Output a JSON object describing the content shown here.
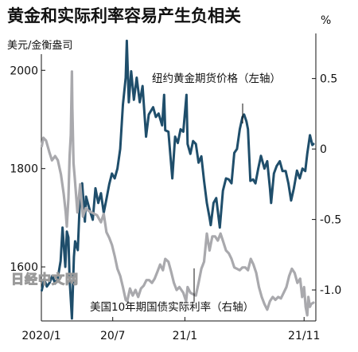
{
  "chart_data": {
    "type": "line",
    "title": "黄金和实际利率容易产生负相关",
    "y_left_unit": "美元/金衡盎司",
    "y_right_unit": "%",
    "y_left_ticks": [
      "2000",
      "1800",
      "1600"
    ],
    "y_left_lim": [
      1490,
      2075
    ],
    "y_right_ticks": [
      "0.5",
      "0",
      "-0.5",
      "-1.0"
    ],
    "y_right_lim": [
      -1.22,
      0.82
    ],
    "x_ticks": [
      "2020/1",
      "20/7",
      "21/1",
      "21/11"
    ],
    "series": [
      {
        "name": "纽约黄金期货价格（左轴）",
        "axis": "left",
        "color": "#1f4e6b",
        "points": [
          [
            "2020-01-02",
            1552
          ],
          [
            "2020-01-08",
            1575
          ],
          [
            "2020-01-15",
            1560
          ],
          [
            "2020-01-22",
            1568
          ],
          [
            "2020-01-29",
            1582
          ],
          [
            "2020-02-05",
            1566
          ],
          [
            "2020-02-12",
            1578
          ],
          [
            "2020-02-19",
            1612
          ],
          [
            "2020-02-24",
            1680
          ],
          [
            "2020-03-02",
            1600
          ],
          [
            "2020-03-06",
            1672
          ],
          [
            "2020-03-10",
            1660
          ],
          [
            "2020-03-13",
            1575
          ],
          [
            "2020-03-19",
            1495
          ],
          [
            "2020-03-24",
            1620
          ],
          [
            "2020-03-27",
            1652
          ],
          [
            "2020-04-03",
            1634
          ],
          [
            "2020-04-09",
            1752
          ],
          [
            "2020-04-14",
            1770
          ],
          [
            "2020-04-21",
            1692
          ],
          [
            "2020-04-24",
            1743
          ],
          [
            "2020-05-04",
            1714
          ],
          [
            "2020-05-11",
            1696
          ],
          [
            "2020-05-18",
            1760
          ],
          [
            "2020-05-25",
            1730
          ],
          [
            "2020-06-01",
            1750
          ],
          [
            "2020-06-08",
            1710
          ],
          [
            "2020-06-15",
            1738
          ],
          [
            "2020-06-22",
            1768
          ],
          [
            "2020-06-29",
            1790
          ],
          [
            "2020-07-06",
            1780
          ],
          [
            "2020-07-13",
            1800
          ],
          [
            "2020-07-20",
            1840
          ],
          [
            "2020-07-27",
            1930
          ],
          [
            "2020-08-03",
            1985
          ],
          [
            "2020-08-06",
            2060
          ],
          [
            "2020-08-11",
            1935
          ],
          [
            "2020-08-17",
            1998
          ],
          [
            "2020-08-24",
            1940
          ],
          [
            "2020-08-31",
            1985
          ],
          [
            "2020-09-08",
            1935
          ],
          [
            "2020-09-15",
            1968
          ],
          [
            "2020-09-24",
            1865
          ],
          [
            "2020-10-01",
            1910
          ],
          [
            "2020-10-12",
            1925
          ],
          [
            "2020-10-19",
            1905
          ],
          [
            "2020-10-26",
            1912
          ],
          [
            "2020-11-04",
            1888
          ],
          [
            "2020-11-09",
            1950
          ],
          [
            "2020-11-12",
            1878
          ],
          [
            "2020-11-20",
            1875
          ],
          [
            "2020-11-30",
            1780
          ],
          [
            "2020-12-07",
            1865
          ],
          [
            "2020-12-14",
            1852
          ],
          [
            "2020-12-21",
            1880
          ],
          [
            "2020-12-28",
            1875
          ],
          [
            "2021-01-05",
            1950
          ],
          [
            "2021-01-08",
            1850
          ],
          [
            "2021-01-15",
            1830
          ],
          [
            "2021-01-22",
            1856
          ],
          [
            "2021-01-29",
            1850
          ],
          [
            "2021-02-05",
            1812
          ],
          [
            "2021-02-12",
            1825
          ],
          [
            "2021-02-19",
            1775
          ],
          [
            "2021-02-26",
            1730
          ],
          [
            "2021-03-05",
            1700
          ],
          [
            "2021-03-08",
            1685
          ],
          [
            "2021-03-15",
            1730
          ],
          [
            "2021-03-22",
            1740
          ],
          [
            "2021-03-31",
            1680
          ],
          [
            "2021-04-08",
            1755
          ],
          [
            "2021-04-16",
            1780
          ],
          [
            "2021-04-23",
            1778
          ],
          [
            "2021-04-30",
            1770
          ],
          [
            "2021-05-07",
            1832
          ],
          [
            "2021-05-14",
            1840
          ],
          [
            "2021-05-21",
            1880
          ],
          [
            "2021-05-28",
            1905
          ],
          [
            "2021-06-01",
            1910
          ],
          [
            "2021-06-07",
            1896
          ],
          [
            "2021-06-11",
            1880
          ],
          [
            "2021-06-17",
            1775
          ],
          [
            "2021-06-24",
            1778
          ],
          [
            "2021-06-30",
            1770
          ],
          [
            "2021-07-07",
            1800
          ],
          [
            "2021-07-14",
            1826
          ],
          [
            "2021-07-23",
            1800
          ],
          [
            "2021-07-30",
            1815
          ],
          [
            "2021-08-06",
            1760
          ],
          [
            "2021-08-09",
            1730
          ],
          [
            "2021-08-16",
            1790
          ],
          [
            "2021-08-23",
            1805
          ],
          [
            "2021-08-31",
            1815
          ],
          [
            "2021-09-07",
            1795
          ],
          [
            "2021-09-15",
            1795
          ],
          [
            "2021-09-22",
            1770
          ],
          [
            "2021-09-29",
            1735
          ],
          [
            "2021-10-06",
            1760
          ],
          [
            "2021-10-14",
            1796
          ],
          [
            "2021-10-21",
            1780
          ],
          [
            "2021-10-28",
            1800
          ],
          [
            "2021-11-04",
            1795
          ],
          [
            "2021-11-09",
            1830
          ],
          [
            "2021-11-16",
            1868
          ],
          [
            "2021-11-22",
            1848
          ],
          [
            "2021-11-25",
            1850
          ]
        ]
      },
      {
        "name": "美国10年期国债实际利率（右轴）",
        "axis": "right",
        "color": "#a9a9ad",
        "points": [
          [
            "2020-01-02",
            0.02
          ],
          [
            "2020-01-06",
            0.08
          ],
          [
            "2020-01-13",
            0.06
          ],
          [
            "2020-01-21",
            -0.02
          ],
          [
            "2020-01-28",
            -0.08
          ],
          [
            "2020-02-05",
            -0.05
          ],
          [
            "2020-02-12",
            -0.08
          ],
          [
            "2020-02-20",
            -0.18
          ],
          [
            "2020-02-27",
            -0.32
          ],
          [
            "2020-03-03",
            -0.45
          ],
          [
            "2020-03-06",
            -0.55
          ],
          [
            "2020-03-10",
            -0.35
          ],
          [
            "2020-03-13",
            -0.05
          ],
          [
            "2020-03-16",
            0.1
          ],
          [
            "2020-03-19",
            0.55
          ],
          [
            "2020-03-20",
            0.3
          ],
          [
            "2020-03-23",
            -0.1
          ],
          [
            "2020-03-26",
            -0.2
          ],
          [
            "2020-04-02",
            -0.45
          ],
          [
            "2020-04-09",
            -0.25
          ],
          [
            "2020-04-16",
            -0.48
          ],
          [
            "2020-04-23",
            -0.42
          ],
          [
            "2020-05-01",
            -0.44
          ],
          [
            "2020-05-08",
            -0.45
          ],
          [
            "2020-05-15",
            -0.46
          ],
          [
            "2020-05-22",
            -0.47
          ],
          [
            "2020-06-01",
            -0.52
          ],
          [
            "2020-06-08",
            -0.46
          ],
          [
            "2020-06-15",
            -0.59
          ],
          [
            "2020-06-22",
            -0.63
          ],
          [
            "2020-06-29",
            -0.68
          ],
          [
            "2020-07-06",
            -0.76
          ],
          [
            "2020-07-13",
            -0.85
          ],
          [
            "2020-07-20",
            -0.9
          ],
          [
            "2020-07-27",
            -0.98
          ],
          [
            "2020-08-03",
            -1.07
          ],
          [
            "2020-08-07",
            -1.08
          ],
          [
            "2020-08-14",
            -0.99
          ],
          [
            "2020-08-21",
            -1.04
          ],
          [
            "2020-08-28",
            -1.0
          ],
          [
            "2020-09-04",
            -1.05
          ],
          [
            "2020-09-11",
            -0.99
          ],
          [
            "2020-09-18",
            -0.97
          ],
          [
            "2020-09-25",
            -0.93
          ],
          [
            "2020-10-02",
            -0.93
          ],
          [
            "2020-10-09",
            -0.95
          ],
          [
            "2020-10-16",
            -0.92
          ],
          [
            "2020-10-23",
            -0.87
          ],
          [
            "2020-10-30",
            -0.82
          ],
          [
            "2020-11-06",
            -0.86
          ],
          [
            "2020-11-12",
            -0.78
          ],
          [
            "2020-11-20",
            -0.8
          ],
          [
            "2020-11-27",
            -0.87
          ],
          [
            "2020-12-04",
            -0.95
          ],
          [
            "2020-12-11",
            -1.0
          ],
          [
            "2020-12-18",
            -0.98
          ],
          [
            "2020-12-28",
            -1.02
          ],
          [
            "2021-01-04",
            -1.08
          ],
          [
            "2021-01-08",
            -0.98
          ],
          [
            "2021-01-15",
            -1.02
          ],
          [
            "2021-01-22",
            -1.03
          ],
          [
            "2021-01-29",
            -1.04
          ],
          [
            "2021-02-05",
            -0.95
          ],
          [
            "2021-02-12",
            -0.85
          ],
          [
            "2021-02-19",
            -0.8
          ],
          [
            "2021-02-26",
            -0.6
          ],
          [
            "2021-03-05",
            -0.72
          ],
          [
            "2021-03-12",
            -0.62
          ],
          [
            "2021-03-19",
            -0.62
          ],
          [
            "2021-03-26",
            -0.65
          ],
          [
            "2021-04-02",
            -0.6
          ],
          [
            "2021-04-09",
            -0.66
          ],
          [
            "2021-04-16",
            -0.72
          ],
          [
            "2021-04-23",
            -0.74
          ],
          [
            "2021-04-30",
            -0.78
          ],
          [
            "2021-05-07",
            -0.84
          ],
          [
            "2021-05-14",
            -0.85
          ],
          [
            "2021-05-21",
            -0.86
          ],
          [
            "2021-05-28",
            -0.84
          ],
          [
            "2021-06-04",
            -0.84
          ],
          [
            "2021-06-11",
            -0.86
          ],
          [
            "2021-06-18",
            -0.78
          ],
          [
            "2021-06-25",
            -0.82
          ],
          [
            "2021-07-02",
            -0.88
          ],
          [
            "2021-07-09",
            -0.98
          ],
          [
            "2021-07-16",
            -1.05
          ],
          [
            "2021-07-23",
            -1.1
          ],
          [
            "2021-07-30",
            -1.14
          ],
          [
            "2021-08-06",
            -1.08
          ],
          [
            "2021-08-13",
            -1.05
          ],
          [
            "2021-08-20",
            -1.07
          ],
          [
            "2021-08-27",
            -1.05
          ],
          [
            "2021-09-03",
            -1.06
          ],
          [
            "2021-09-10",
            -1.02
          ],
          [
            "2021-09-17",
            -0.98
          ],
          [
            "2021-09-24",
            -0.9
          ],
          [
            "2021-10-01",
            -0.85
          ],
          [
            "2021-10-08",
            -0.88
          ],
          [
            "2021-10-15",
            -0.95
          ],
          [
            "2021-10-22",
            -0.92
          ],
          [
            "2021-10-27",
            -1.05
          ],
          [
            "2021-11-01",
            -0.98
          ],
          [
            "2021-11-05",
            -1.12
          ],
          [
            "2021-11-09",
            -1.18
          ],
          [
            "2021-11-12",
            -1.05
          ],
          [
            "2021-11-16",
            -1.12
          ],
          [
            "2021-11-19",
            -1.1
          ],
          [
            "2021-11-25",
            -1.09
          ]
        ]
      }
    ],
    "annotations": [
      "纽约黄金期货价格（左轴）",
      "美国10年期国债实际利率（右轴）"
    ],
    "watermark": "日经中文网",
    "grid": false
  }
}
